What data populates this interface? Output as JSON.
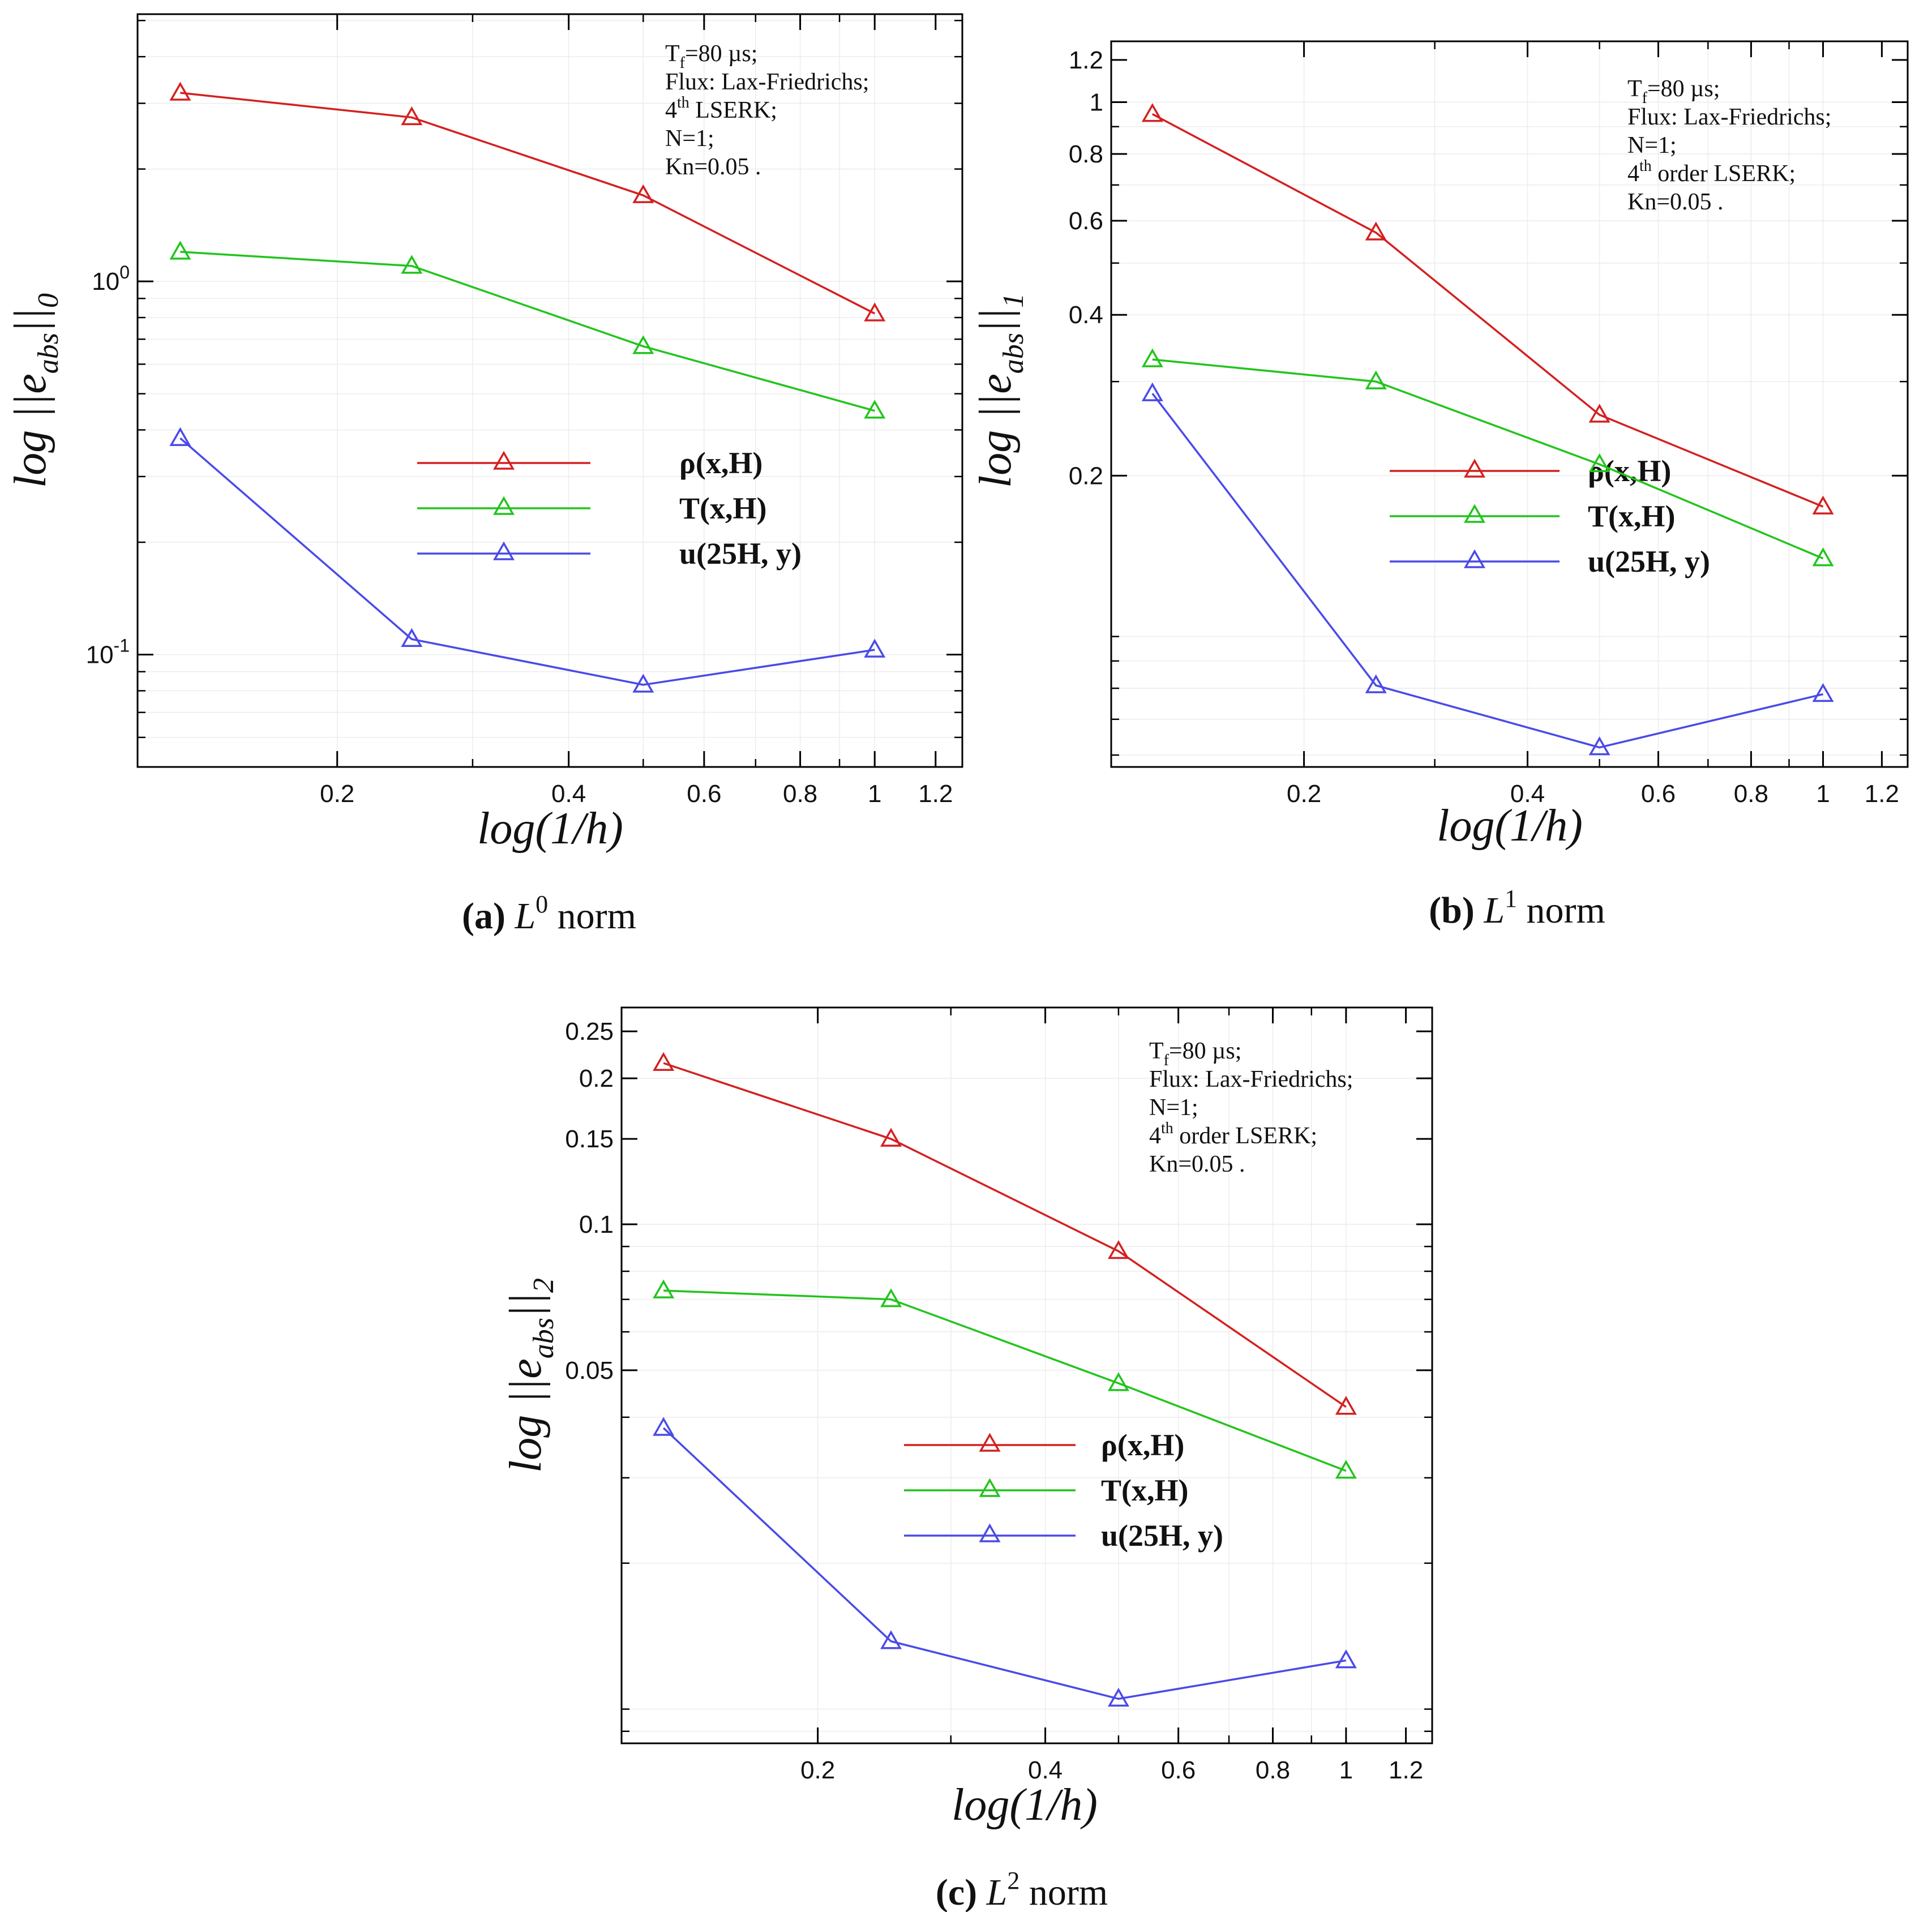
{
  "chart_data": [
    {
      "id": "a",
      "type": "line",
      "xscale": "log",
      "yscale": "log",
      "xlim": [
        0.11,
        1.3
      ],
      "ylim": [
        0.05,
        5.2
      ],
      "x": [
        0.125,
        0.25,
        0.5,
        1
      ],
      "series": [
        {
          "name": "ρ(x,H)",
          "color": "#d42020",
          "values": [
            3.2,
            2.75,
            1.7,
            0.82
          ]
        },
        {
          "name": "T(x,H)",
          "color": "#22c41c",
          "values": [
            1.2,
            1.1,
            0.67,
            0.45
          ]
        },
        {
          "name": "u(25H, y)",
          "color": "#4a4ae8",
          "values": [
            0.38,
            0.11,
            0.083,
            0.103
          ]
        }
      ],
      "xticks": [
        {
          "v": 0.2,
          "label": "0.2"
        },
        {
          "v": 0.4,
          "label": "0.4"
        },
        {
          "v": 0.6,
          "label": "0.6"
        },
        {
          "v": 0.8,
          "label": "0.8"
        },
        {
          "v": 1,
          "label": "1"
        },
        {
          "v": 1.2,
          "label": "1.2"
        }
      ],
      "yticks": [
        {
          "v": 1,
          "base": "10",
          "exp": "0"
        },
        {
          "v": 0.1,
          "base": "10",
          "exp": "-1"
        }
      ],
      "xlabel": "log(1/h)",
      "ylabel": {
        "main": "log ||e",
        "sub": "abs",
        "tail": "||",
        "sub2": "0"
      },
      "notes": [
        {
          "main": "T",
          "sub": "f",
          "tail": "=80  µs;"
        },
        {
          "main": "Flux: Lax-Friedrichs;"
        },
        {
          "main": "4",
          "sup": "th",
          "tail": " LSERK;"
        },
        {
          "main": "N=1;"
        },
        {
          "main": "Kn=0.05 ."
        }
      ],
      "caption": {
        "letter": "(a)",
        "var": "L",
        "sup": "0",
        "word": " norm"
      }
    },
    {
      "id": "b",
      "type": "line",
      "xscale": "log",
      "yscale": "log",
      "xlim": [
        0.11,
        1.3
      ],
      "ylim": [
        0.057,
        1.3
      ],
      "x": [
        0.125,
        0.25,
        0.5,
        1
      ],
      "series": [
        {
          "name": "ρ(x,H)",
          "color": "#d42020",
          "values": [
            0.95,
            0.57,
            0.26,
            0.175
          ]
        },
        {
          "name": "T(x,H)",
          "color": "#22c41c",
          "values": [
            0.33,
            0.3,
            0.21,
            0.14
          ]
        },
        {
          "name": "u(25H, y)",
          "color": "#4a4ae8",
          "values": [
            0.285,
            0.081,
            0.062,
            0.078
          ]
        }
      ],
      "xticks": [
        {
          "v": 0.2,
          "label": "0.2"
        },
        {
          "v": 0.4,
          "label": "0.4"
        },
        {
          "v": 0.6,
          "label": "0.6"
        },
        {
          "v": 0.8,
          "label": "0.8"
        },
        {
          "v": 1,
          "label": "1"
        },
        {
          "v": 1.2,
          "label": "1.2"
        }
      ],
      "yticks": [
        {
          "v": 1.2,
          "label": "1.2"
        },
        {
          "v": 1,
          "label": "1"
        },
        {
          "v": 0.8,
          "label": "0.8"
        },
        {
          "v": 0.6,
          "label": "0.6"
        },
        {
          "v": 0.4,
          "label": "0.4"
        },
        {
          "v": 0.2,
          "label": "0.2"
        }
      ],
      "xlabel": "log(1/h)",
      "ylabel": {
        "main": "log ||e",
        "sub": "abs",
        "tail": "||",
        "sub2": "1"
      },
      "notes": [
        {
          "main": "T",
          "sub": "f",
          "tail": "=80  µs;"
        },
        {
          "main": "Flux: Lax-Friedrichs;"
        },
        {
          "main": "N=1;"
        },
        {
          "main": "4",
          "sup": "th",
          "tail": " order LSERK;"
        },
        {
          "main": "Kn=0.05 ."
        }
      ],
      "caption": {
        "letter": "(b)",
        "var": "L",
        "sup": "1",
        "word": " norm"
      }
    },
    {
      "id": "c",
      "type": "line",
      "xscale": "log",
      "yscale": "log",
      "xlim": [
        0.11,
        1.3
      ],
      "ylim": [
        0.0085,
        0.28
      ],
      "x": [
        0.125,
        0.25,
        0.5,
        1
      ],
      "series": [
        {
          "name": "ρ(x,H)",
          "color": "#d42020",
          "values": [
            0.215,
            0.15,
            0.088,
            0.042
          ]
        },
        {
          "name": "T(x,H)",
          "color": "#22c41c",
          "values": [
            0.073,
            0.07,
            0.047,
            0.031
          ]
        },
        {
          "name": "u(25H, y)",
          "color": "#4a4ae8",
          "values": [
            0.038,
            0.0138,
            0.0105,
            0.0126
          ]
        }
      ],
      "xticks": [
        {
          "v": 0.2,
          "label": "0.2"
        },
        {
          "v": 0.4,
          "label": "0.4"
        },
        {
          "v": 0.6,
          "label": "0.6"
        },
        {
          "v": 0.8,
          "label": "0.8"
        },
        {
          "v": 1,
          "label": "1"
        },
        {
          "v": 1.2,
          "label": "1.2"
        }
      ],
      "yticks": [
        {
          "v": 0.25,
          "label": "0.25"
        },
        {
          "v": 0.2,
          "label": "0.2"
        },
        {
          "v": 0.15,
          "label": "0.15"
        },
        {
          "v": 0.1,
          "label": "0.1"
        },
        {
          "v": 0.05,
          "label": "0.05"
        }
      ],
      "xlabel": "log(1/h)",
      "ylabel": {
        "main": "log ||e",
        "sub": "abs",
        "tail": "||",
        "sub2": "2"
      },
      "notes": [
        {
          "main": "T",
          "sub": "f",
          "tail": "=80  µs;"
        },
        {
          "main": "Flux: Lax-Friedrichs;"
        },
        {
          "main": "N=1;"
        },
        {
          "main": "4",
          "sup": "th",
          "tail": " order LSERK;"
        },
        {
          "main": "Kn=0.05 ."
        }
      ],
      "caption": {
        "letter": "(c)",
        "var": "L",
        "sup": "2",
        "word": " norm"
      }
    }
  ]
}
